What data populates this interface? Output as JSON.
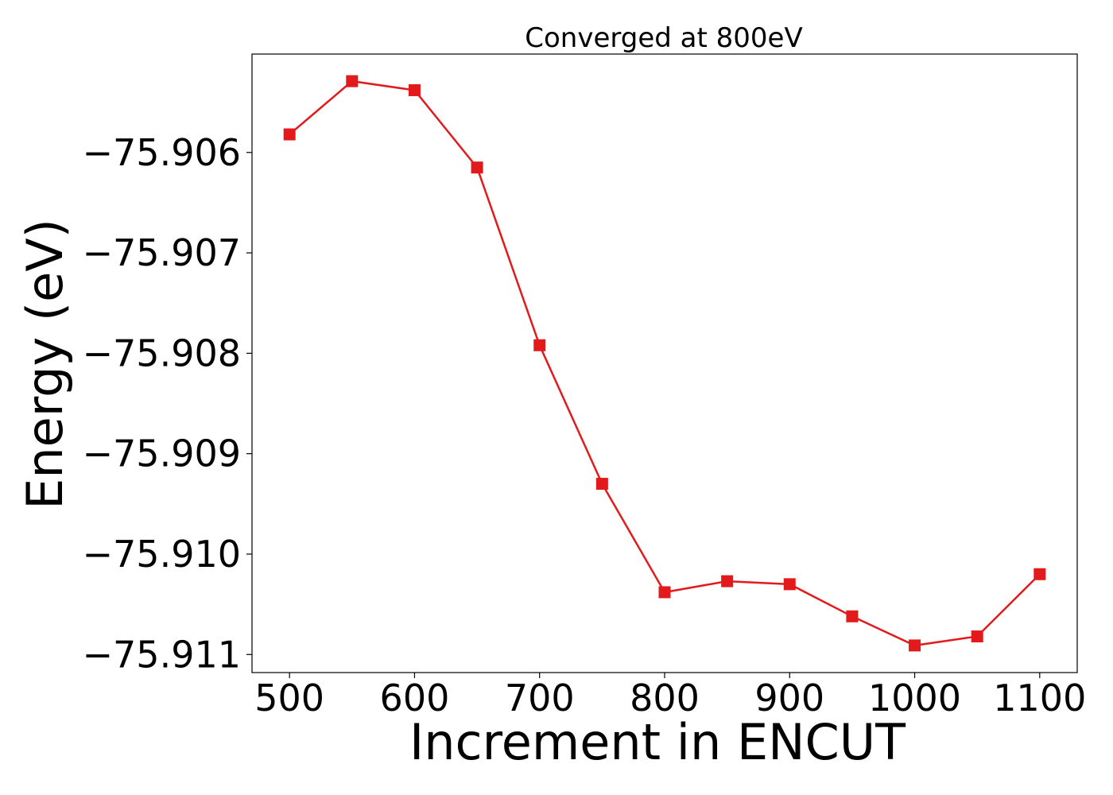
{
  "chart_data": {
    "type": "line",
    "title": "Converged at 800eV",
    "xlabel": "Increment in ENCUT",
    "ylabel": "Energy (eV)",
    "xlim": [
      470,
      1130
    ],
    "ylim": [
      -75.91118,
      -75.90502
    ],
    "x_ticks": [
      500,
      600,
      700,
      800,
      900,
      1000,
      1100
    ],
    "x_tick_labels": [
      "500",
      "600",
      "700",
      "800",
      "900",
      "1000",
      "1100"
    ],
    "y_ticks": [
      -75.906,
      -75.907,
      -75.908,
      -75.909,
      -75.91,
      -75.911
    ],
    "y_tick_labels": [
      "−75.906",
      "−75.907",
      "−75.908",
      "−75.909",
      "−75.910",
      "−75.911"
    ],
    "grid": false,
    "legend": "none",
    "series": [
      {
        "color": "#e31a1c",
        "marker": "square",
        "x": [
          500,
          550,
          600,
          650,
          700,
          750,
          800,
          850,
          900,
          950,
          1000,
          1050,
          1100
        ],
        "y": [
          -75.90582,
          -75.90529,
          -75.90538,
          -75.90615,
          -75.90792,
          -75.9093,
          -75.91038,
          -75.91027,
          -75.9103,
          -75.91062,
          -75.91091,
          -75.91082,
          -75.9102
        ]
      }
    ]
  }
}
